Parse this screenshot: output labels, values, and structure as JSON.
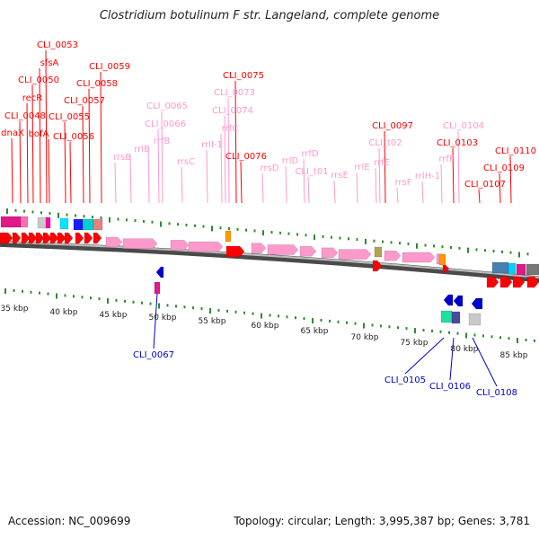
{
  "title": "Clostridium botulinum F str. Langeland, complete genome",
  "accession": "Accession: NC_009699",
  "topology": "Topology: circular; Length: 3,995,387 bp; Genes: 3,781",
  "colors": {
    "red": "#ff0000",
    "pink": "#ff99cc",
    "blue": "#0000cc",
    "backbone": "#888888",
    "tick": "#2e8b2e"
  },
  "scale": {
    "unit": "kbp",
    "labels": [
      "35 kbp",
      "40 kbp",
      "45 kbp",
      "50 kbp",
      "55 kbp",
      "60 kbp",
      "65 kbp",
      "70 kbp",
      "75 kbp",
      "80 kbp",
      "85 kbp"
    ]
  },
  "labels_top": [
    {
      "text": "dnaX",
      "color": "red"
    },
    {
      "text": "CLI_0048",
      "color": "red"
    },
    {
      "text": "recR",
      "color": "red"
    },
    {
      "text": "CLI_0050",
      "color": "red"
    },
    {
      "text": "sfsA",
      "color": "red"
    },
    {
      "text": "CLI_0053",
      "color": "red"
    },
    {
      "text": "bofA",
      "color": "red"
    },
    {
      "text": "CLI_0055",
      "color": "red"
    },
    {
      "text": "CLI_0056",
      "color": "red"
    },
    {
      "text": "CLI_0057",
      "color": "red"
    },
    {
      "text": "CLI_0058",
      "color": "red"
    },
    {
      "text": "CLI_0059",
      "color": "red"
    },
    {
      "text": "rrsB",
      "color": "pink"
    },
    {
      "text": "rrlB",
      "color": "pink"
    },
    {
      "text": "rrfB",
      "color": "pink"
    },
    {
      "text": "CLI_0066",
      "color": "pink"
    },
    {
      "text": "CLI_0065",
      "color": "pink"
    },
    {
      "text": "rrsC",
      "color": "pink"
    },
    {
      "text": "rrlI-1",
      "color": "pink"
    },
    {
      "text": "rrfC",
      "color": "pink"
    },
    {
      "text": "CLI_0074",
      "color": "pink"
    },
    {
      "text": "CLI_0073",
      "color": "pink"
    },
    {
      "text": "CLI_0075",
      "color": "red"
    },
    {
      "text": "CLI_0076",
      "color": "red"
    },
    {
      "text": "rrsD",
      "color": "pink"
    },
    {
      "text": "rrlD",
      "color": "pink"
    },
    {
      "text": "rrfD",
      "color": "pink"
    },
    {
      "text": "CLI_t01",
      "color": "pink"
    },
    {
      "text": "rrsE",
      "color": "pink"
    },
    {
      "text": "rrlE",
      "color": "pink"
    },
    {
      "text": "rrfE",
      "color": "pink"
    },
    {
      "text": "CLI_t02",
      "color": "pink"
    },
    {
      "text": "CLI_0097",
      "color": "red"
    },
    {
      "text": "rrsF",
      "color": "pink"
    },
    {
      "text": "rrlH-1",
      "color": "pink"
    },
    {
      "text": "rrfF",
      "color": "pink"
    },
    {
      "text": "CLI_0103",
      "color": "red"
    },
    {
      "text": "CLI_0104",
      "color": "pink"
    },
    {
      "text": "CLI_0107",
      "color": "red"
    },
    {
      "text": "CLI_0109",
      "color": "red"
    },
    {
      "text": "CLI_0110",
      "color": "red"
    }
  ],
  "labels_bottom": [
    {
      "text": "CLI_0067",
      "color": "blue"
    },
    {
      "text": "CLI_0105",
      "color": "blue"
    },
    {
      "text": "CLI_0106",
      "color": "blue"
    },
    {
      "text": "CLI_0108",
      "color": "blue"
    }
  ]
}
